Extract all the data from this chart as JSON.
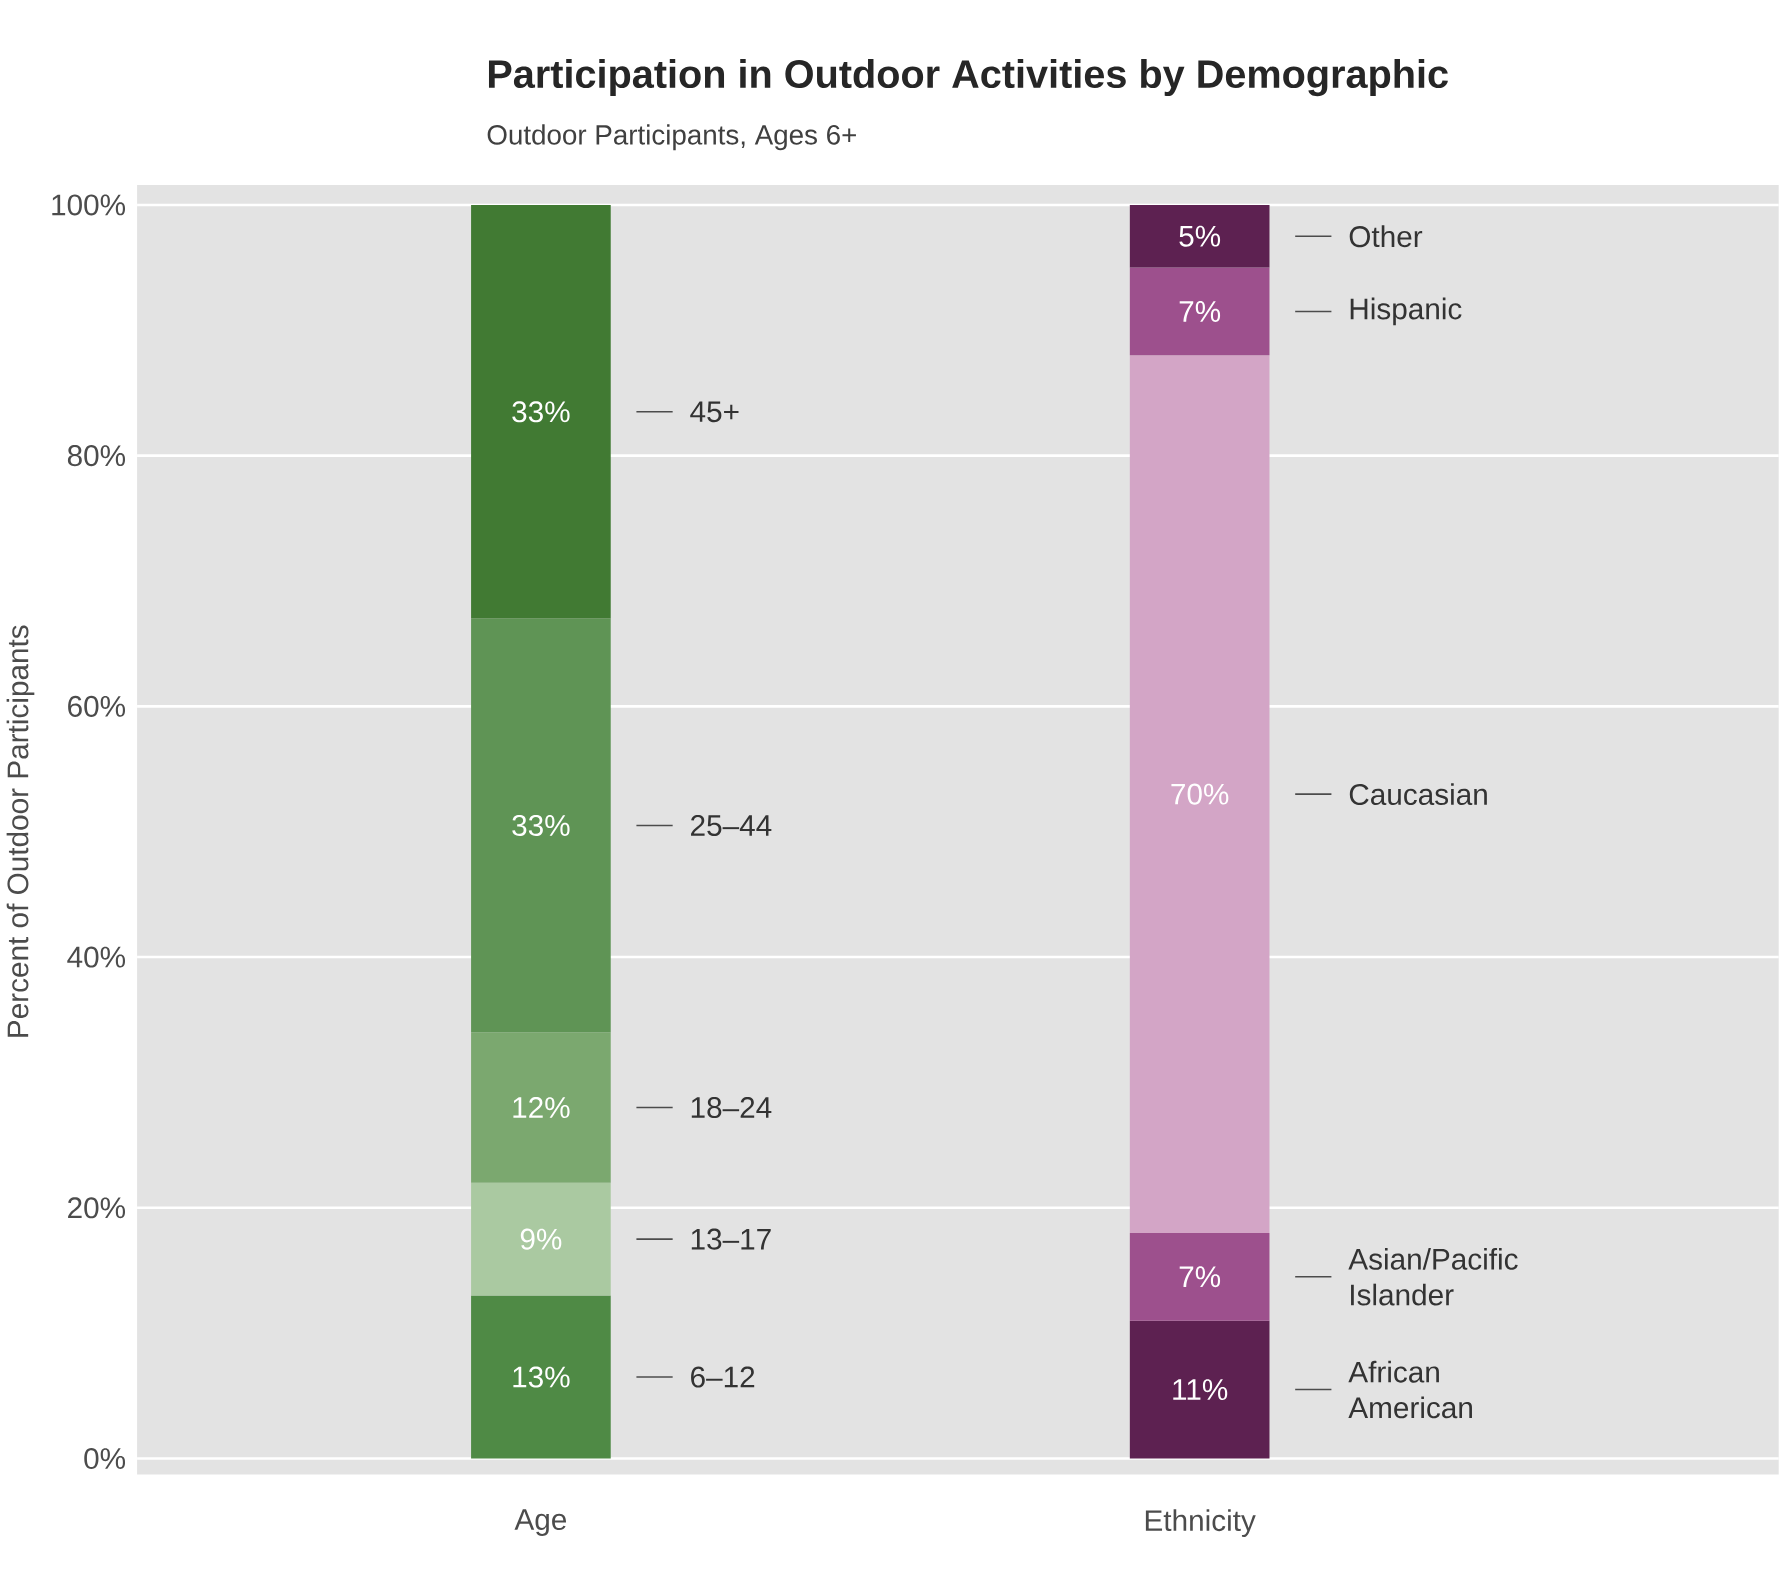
{
  "chart_data": {
    "type": "bar",
    "title": "Participation in Outdoor Activities by Demographic",
    "subtitle": "Outdoor Participants, Ages 6+",
    "ylabel": "Percent of Outdoor Participants",
    "categories": [
      "Age",
      "Ethnicity"
    ],
    "stacked": true,
    "ylim": [
      0,
      100
    ],
    "yticks": [
      {
        "value": 0,
        "label": "0%"
      },
      {
        "value": 20,
        "label": "20%"
      },
      {
        "value": 40,
        "label": "40%"
      },
      {
        "value": 60,
        "label": "60%"
      },
      {
        "value": 80,
        "label": "80%"
      },
      {
        "value": 100,
        "label": "100%"
      }
    ],
    "grid": "y",
    "series": [
      {
        "name": "6–12",
        "color": "#4f8a45",
        "values": [
          13,
          null
        ],
        "value_labels": [
          "13%",
          null
        ]
      },
      {
        "name": "13–17",
        "color": "#aac9a1",
        "values": [
          9,
          null
        ],
        "value_labels": [
          "9%",
          null
        ]
      },
      {
        "name": "18–24",
        "color": "#7ba86f",
        "values": [
          12,
          null
        ],
        "value_labels": [
          "12%",
          null
        ]
      },
      {
        "name": "25–44",
        "color": "#5f9455",
        "values": [
          33,
          null
        ],
        "value_labels": [
          "33%",
          null
        ]
      },
      {
        "name": "45+",
        "color": "#417a33",
        "values": [
          33,
          null
        ],
        "value_labels": [
          "33%",
          null
        ]
      },
      {
        "name": "African American",
        "color": "#5d2151",
        "values": [
          null,
          11
        ],
        "value_labels": [
          null,
          "11%"
        ]
      },
      {
        "name": "Asian/Pacific Islander",
        "color": "#9d508d",
        "values": [
          null,
          7
        ],
        "value_labels": [
          null,
          "7%"
        ]
      },
      {
        "name": "Caucasian",
        "color": "#d3a5c6",
        "values": [
          null,
          70
        ],
        "value_labels": [
          null,
          "70%"
        ]
      },
      {
        "name": "Hispanic",
        "color": "#9d508d",
        "values": [
          null,
          7
        ],
        "value_labels": [
          null,
          "7%"
        ]
      },
      {
        "name": "Other",
        "color": "#5d2151",
        "values": [
          null,
          5
        ],
        "value_labels": [
          null,
          "5%"
        ]
      }
    ]
  }
}
